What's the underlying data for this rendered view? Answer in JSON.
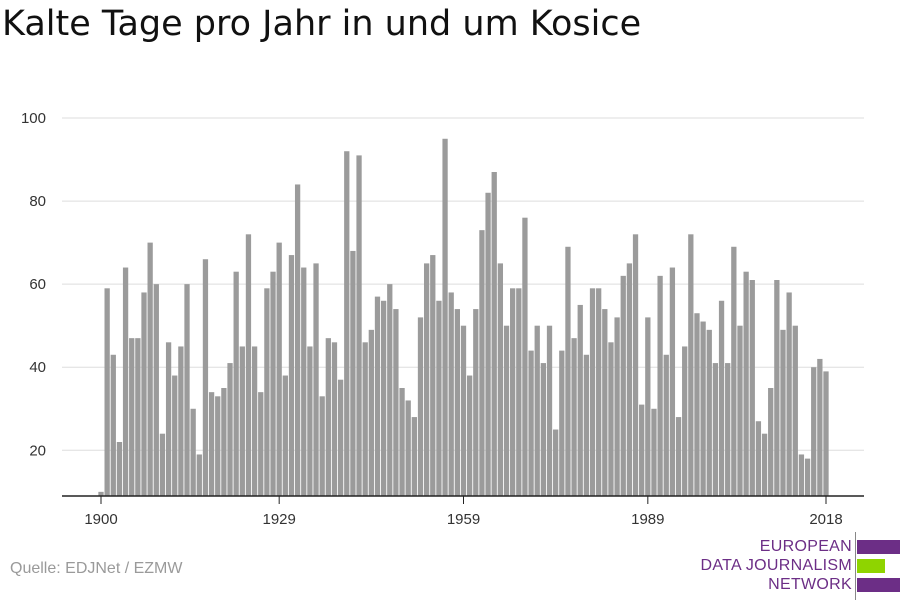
{
  "title": "Kalte Tage pro Jahr in und um Kosice",
  "source": "Quelle: EDJNet / EZMW",
  "logo": {
    "lines": [
      "EUROPEAN",
      "DATA JOURNALISM",
      "NETWORK"
    ],
    "colors": {
      "purple": "#6c2e86",
      "green": "#8fd400"
    }
  },
  "colors": {
    "bar": "#9b9b9b",
    "grid": "#dddddd",
    "axis": "#222222"
  },
  "chart_data": {
    "type": "bar",
    "title": "Kalte Tage pro Jahr in und um Kosice",
    "xlabel": "",
    "ylabel": "",
    "x_range": [
      1900,
      2018
    ],
    "xticks": [
      1900,
      1929,
      1959,
      1989,
      2018
    ],
    "ylim": [
      9,
      100
    ],
    "yticks": [
      20,
      40,
      60,
      80,
      100
    ],
    "grid": true,
    "x": [
      1900,
      1901,
      1902,
      1903,
      1904,
      1905,
      1906,
      1907,
      1908,
      1909,
      1910,
      1911,
      1912,
      1913,
      1914,
      1915,
      1916,
      1917,
      1918,
      1919,
      1920,
      1921,
      1922,
      1923,
      1924,
      1925,
      1926,
      1927,
      1928,
      1929,
      1930,
      1931,
      1932,
      1933,
      1934,
      1935,
      1936,
      1937,
      1938,
      1939,
      1940,
      1941,
      1942,
      1943,
      1944,
      1945,
      1946,
      1947,
      1948,
      1949,
      1950,
      1951,
      1952,
      1953,
      1954,
      1955,
      1956,
      1957,
      1958,
      1959,
      1960,
      1961,
      1962,
      1963,
      1964,
      1965,
      1966,
      1967,
      1968,
      1969,
      1970,
      1971,
      1972,
      1973,
      1974,
      1975,
      1976,
      1977,
      1978,
      1979,
      1980,
      1981,
      1982,
      1983,
      1984,
      1985,
      1986,
      1987,
      1988,
      1989,
      1990,
      1991,
      1992,
      1993,
      1994,
      1995,
      1996,
      1997,
      1998,
      1999,
      2000,
      2001,
      2002,
      2003,
      2004,
      2005,
      2006,
      2007,
      2008,
      2009,
      2010,
      2011,
      2012,
      2013,
      2014,
      2015,
      2016,
      2017,
      2018
    ],
    "values": [
      10,
      59,
      43,
      22,
      64,
      47,
      47,
      58,
      70,
      60,
      24,
      46,
      38,
      45,
      60,
      30,
      19,
      66,
      34,
      33,
      35,
      41,
      63,
      45,
      72,
      45,
      34,
      59,
      63,
      70,
      38,
      67,
      84,
      64,
      45,
      65,
      33,
      47,
      46,
      37,
      92,
      68,
      91,
      46,
      49,
      57,
      56,
      60,
      54,
      35,
      32,
      28,
      52,
      65,
      67,
      56,
      95,
      58,
      54,
      50,
      38,
      54,
      73,
      82,
      87,
      65,
      50,
      59,
      59,
      76,
      44,
      50,
      41,
      50,
      25,
      44,
      69,
      47,
      55,
      43,
      59,
      59,
      54,
      46,
      52,
      62,
      65,
      72,
      31,
      52,
      30,
      62,
      43,
      64,
      28,
      45,
      72,
      53,
      51,
      49,
      41,
      56,
      41,
      69,
      50,
      63,
      61,
      27,
      24,
      35,
      61,
      49,
      58,
      50,
      19,
      18,
      40,
      42,
      39
    ]
  }
}
